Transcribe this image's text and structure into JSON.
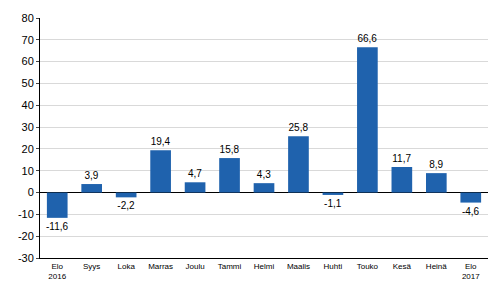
{
  "chart_data": {
    "type": "bar",
    "categories": [
      "Elo\n2016",
      "Syys",
      "Loka",
      "Marras",
      "Joulu",
      "Tammi",
      "Helmi",
      "Maalis",
      "Huhti",
      "Touko",
      "Kesä",
      "Heinä",
      "Elo\n2017"
    ],
    "values": [
      -11.6,
      3.9,
      -2.2,
      19.4,
      4.7,
      15.8,
      4.3,
      25.8,
      -1.1,
      66.6,
      11.7,
      8.9,
      -4.6
    ],
    "value_labels": [
      "-11,6",
      "3,9",
      "-2,2",
      "19,4",
      "4,7",
      "15,8",
      "4,3",
      "25,8",
      "-1,1",
      "66,6",
      "11,7",
      "8,9",
      "-4,6"
    ],
    "data_labels": true,
    "color": "#1f62ad",
    "ylim": [
      -30,
      80
    ],
    "yticks": [
      -30,
      -20,
      -10,
      0,
      10,
      20,
      30,
      40,
      50,
      60,
      70,
      80
    ],
    "grid": true
  }
}
